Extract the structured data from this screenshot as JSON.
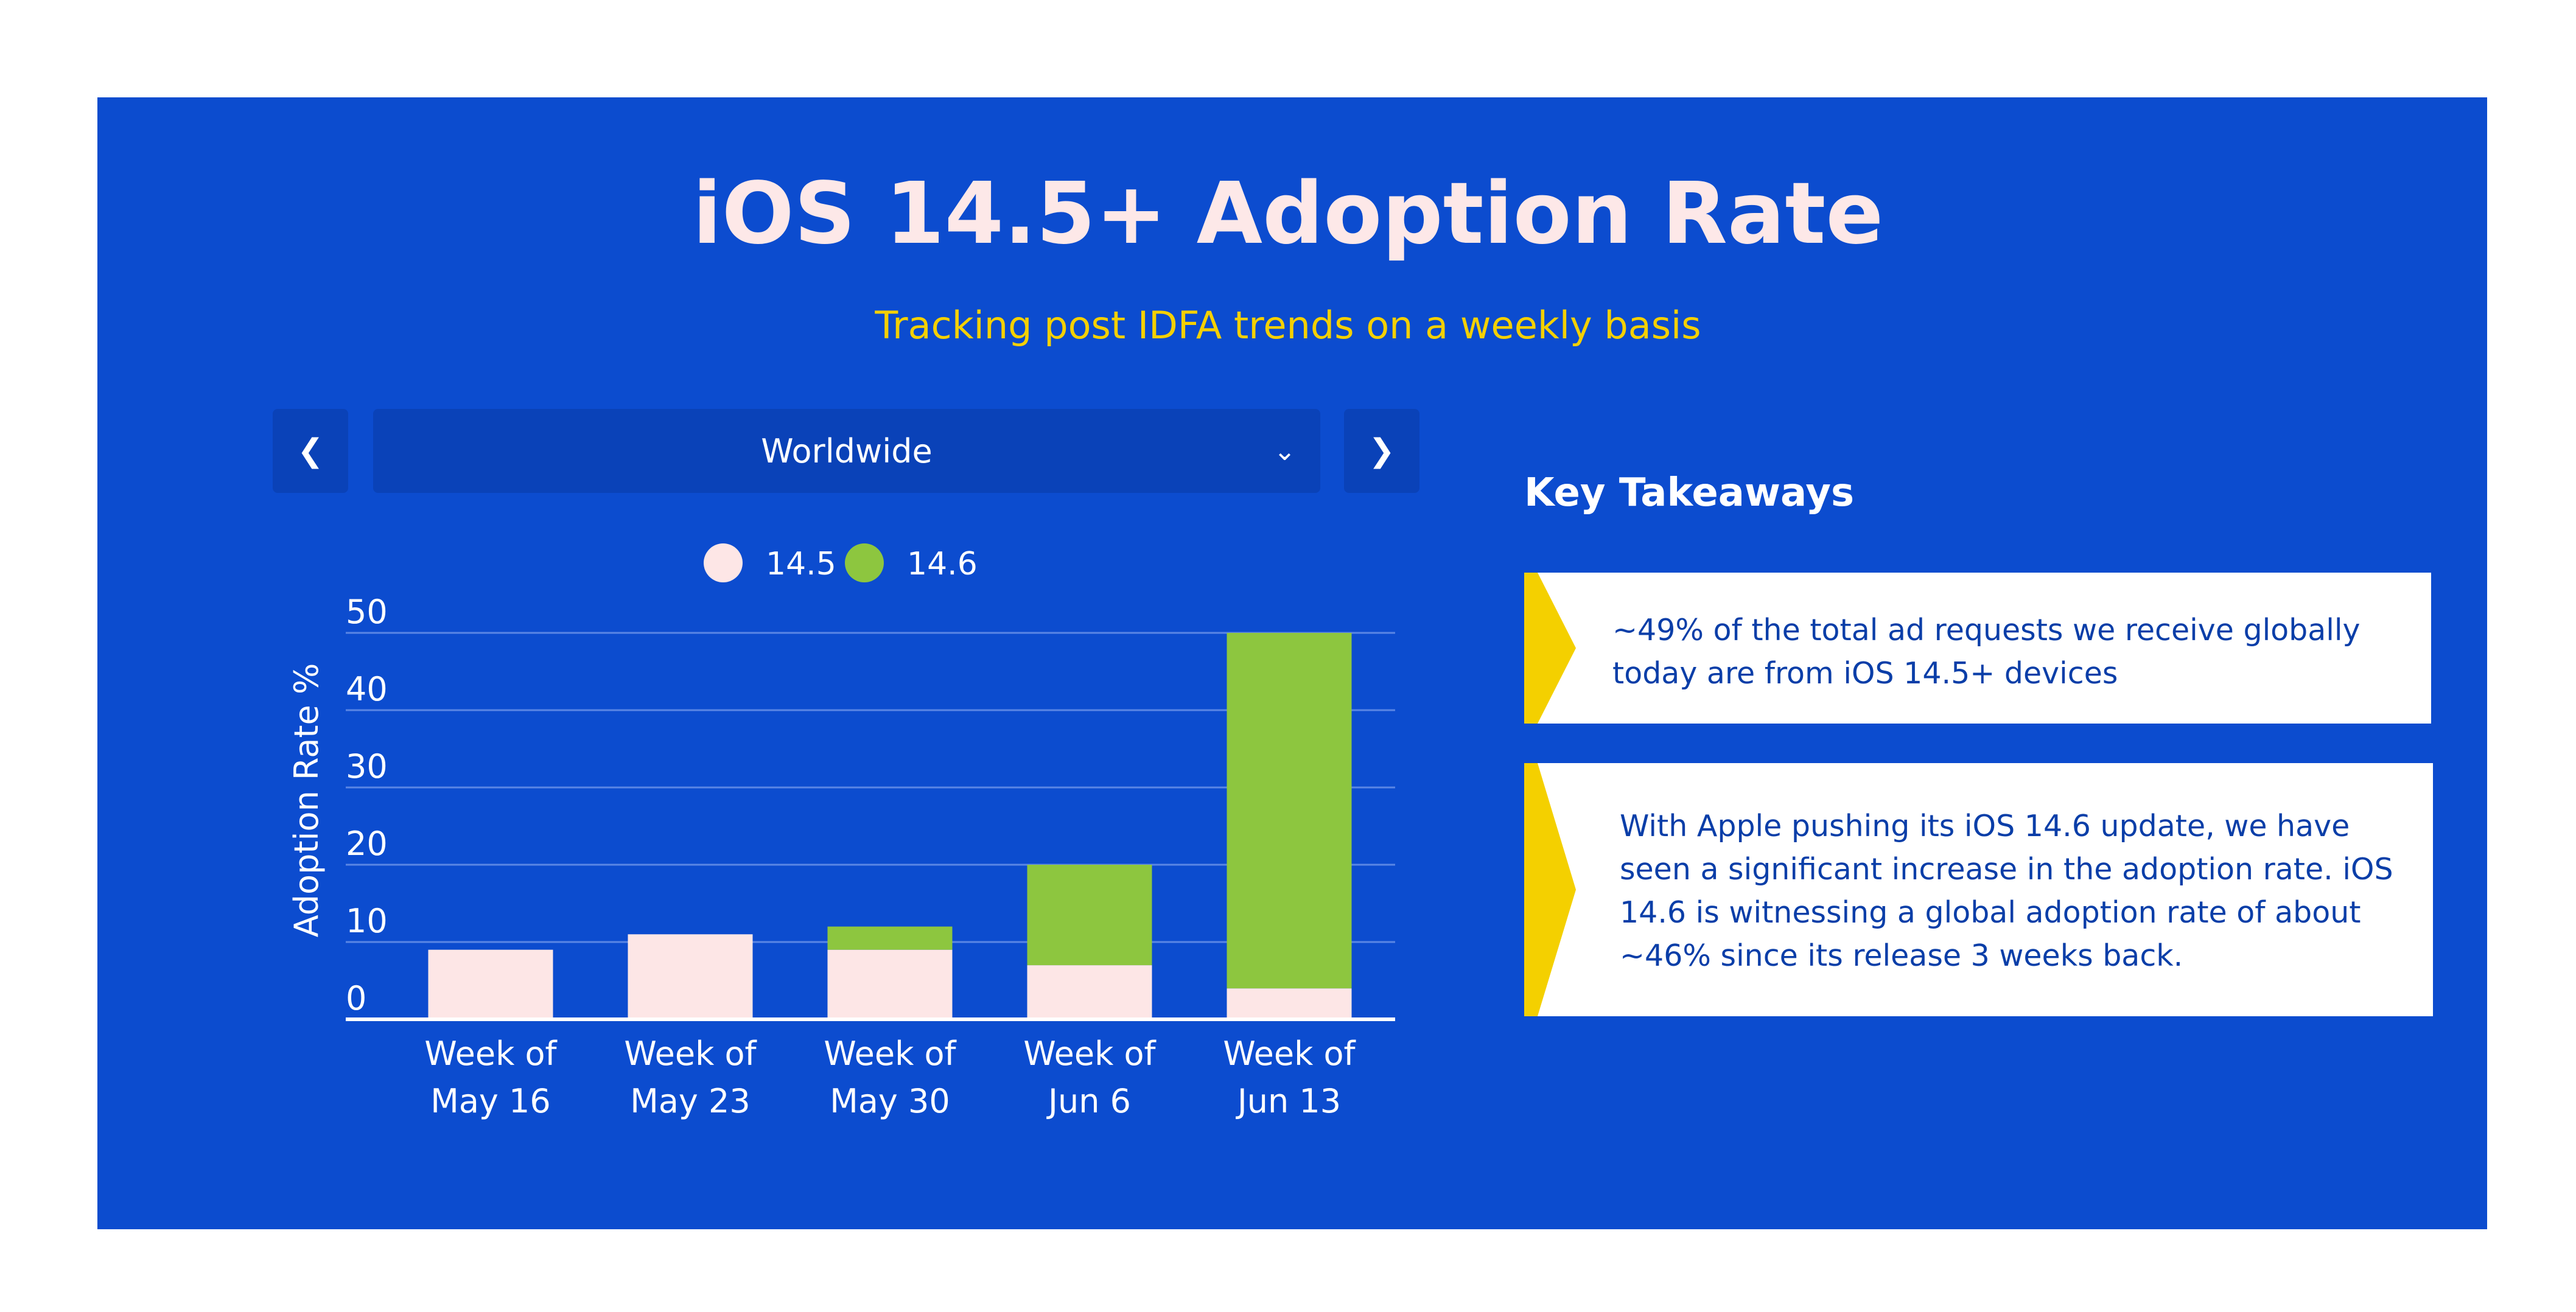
{
  "header": {
    "title": "iOS 14.5+ Adoption Rate",
    "subtitle": "Tracking post IDFA trends on a weekly basis"
  },
  "controls": {
    "prev_icon": "chevron-left-icon",
    "next_icon": "chevron-right-icon",
    "dropdown_icon": "chevron-down-icon",
    "region": "Worldwide"
  },
  "takeaways": {
    "heading": "Key Takeaways",
    "items": [
      "~49% of the total ad requests we receive globally today are from iOS 14.5+ devices",
      "With Apple pushing its iOS 14.6 update, we have seen a significant increase in the adoption rate. iOS 14.6 is witnessing a global adoption rate of about ~46% since its release 3 weeks back."
    ]
  },
  "colors": {
    "background": "#0c4ccf",
    "series_14_5": "#fde6e6",
    "series_14_6": "#8dc63f",
    "accent": "#f4d000",
    "card_text": "#0a3ea8"
  },
  "chart_data": {
    "type": "bar",
    "stacked": true,
    "categories": [
      "Week of\nMay 16",
      "Week of\nMay 23",
      "Week of\nMay 30",
      "Week of\nJun 6",
      "Week of\nJun 13"
    ],
    "series": [
      {
        "name": "14.5",
        "values": [
          9,
          11,
          9,
          7,
          4
        ]
      },
      {
        "name": "14.6",
        "values": [
          0,
          0,
          3,
          13,
          46
        ]
      }
    ],
    "ylabel": "Adoption Rate %",
    "xlabel": "",
    "ylim": [
      0,
      50
    ],
    "yticks": [
      0,
      10,
      20,
      30,
      40,
      50
    ],
    "grid": true,
    "legend": "top"
  }
}
